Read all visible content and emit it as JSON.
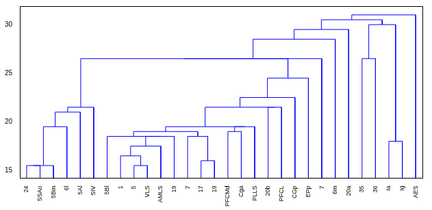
{
  "chart_data": {
    "type": "dendrogram",
    "leaves": [
      "24",
      "SSAo",
      "5Bm",
      "6l",
      "5Al",
      "SIV",
      "5Bl",
      "1",
      "5",
      "VLS",
      "AMLS",
      "19",
      "7",
      "17",
      "19",
      "PFCMd",
      "Cga",
      "PLLS",
      "20b",
      "PFCL",
      "CGp",
      "EPp",
      "7",
      "6m",
      "20a",
      "35",
      "36",
      "Ia",
      "Ig",
      "AES"
    ],
    "merges": [
      {
        "children": [
          0,
          1
        ],
        "height": 15.5
      },
      {
        "children": [
          30,
          2
        ],
        "height": 15.5
      },
      {
        "children": [
          31,
          3
        ],
        "height": 19.5
      },
      {
        "children": [
          32,
          4
        ],
        "height": 21
      },
      {
        "children": [
          33,
          5
        ],
        "height": 21.5
      },
      {
        "children": [
          8,
          9
        ],
        "height": 15.5
      },
      {
        "children": [
          7,
          35
        ],
        "height": 16.5
      },
      {
        "children": [
          36,
          10
        ],
        "height": 17.5
      },
      {
        "children": [
          37,
          11
        ],
        "height": 18.5
      },
      {
        "children": [
          6,
          38
        ],
        "height": 18.5
      },
      {
        "children": [
          13,
          14
        ],
        "height": 16
      },
      {
        "children": [
          12,
          40
        ],
        "height": 18.5
      },
      {
        "children": [
          39,
          41
        ],
        "height": 19
      },
      {
        "children": [
          15,
          16
        ],
        "height": 19
      },
      {
        "children": [
          43,
          17
        ],
        "height": 19.5
      },
      {
        "children": [
          42,
          44
        ],
        "height": 19.5
      },
      {
        "children": [
          18,
          19
        ],
        "height": 21.5
      },
      {
        "children": [
          45,
          46
        ],
        "height": 21.5
      },
      {
        "children": [
          47,
          20
        ],
        "height": 22.5
      },
      {
        "children": [
          48,
          21
        ],
        "height": 24.5
      },
      {
        "children": [
          34,
          49
        ],
        "height": 26.5
      },
      {
        "children": [
          50,
          22
        ],
        "height": 26.5
      },
      {
        "children": [
          51,
          23
        ],
        "height": 28.5
      },
      {
        "children": [
          52,
          24
        ],
        "height": 29.5
      },
      {
        "children": [
          25,
          26
        ],
        "height": 26.5
      },
      {
        "children": [
          27,
          28
        ],
        "height": 18
      },
      {
        "children": [
          54,
          55
        ],
        "height": 30
      },
      {
        "children": [
          53,
          56
        ],
        "height": 30.5
      },
      {
        "children": [
          57,
          29
        ],
        "height": 31
      }
    ],
    "color": "#0000ff",
    "xlim": [
      0.5,
      30.5
    ],
    "ylim": [
      14.2,
      31.9
    ],
    "yticks": [
      15,
      20,
      25,
      30
    ],
    "grid": false
  }
}
